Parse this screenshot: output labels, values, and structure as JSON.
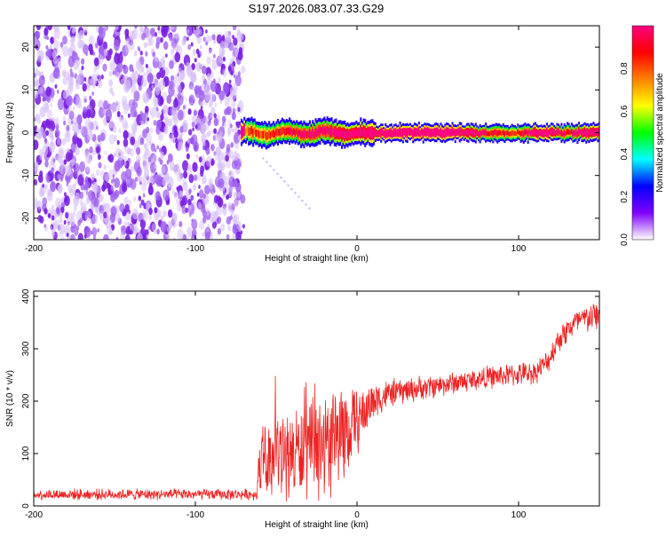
{
  "figure_title": "S197.2026.083.07.33.G29",
  "chart_data": [
    {
      "type": "heatmap",
      "title": "S197.2026.083.07.33.G29",
      "xlabel": "Height of straight line (km)",
      "ylabel": "Frequency (Hz)",
      "xlim": [
        -200,
        150
      ],
      "ylim": [
        -25,
        25
      ],
      "x_ticks": [
        {
          "value": -200,
          "label": "-200"
        },
        {
          "value": -100,
          "label": "-100"
        },
        {
          "value": 0,
          "label": "0"
        },
        {
          "value": 100,
          "label": "100"
        }
      ],
      "y_ticks": [
        {
          "value": -20,
          "label": "-20"
        },
        {
          "value": -10,
          "label": "-10"
        },
        {
          "value": 0,
          "label": "0"
        },
        {
          "value": 10,
          "label": "10"
        },
        {
          "value": 20,
          "label": "20"
        }
      ],
      "noise_region_x": [
        -200,
        -70
      ],
      "signal": {
        "start_x": -72,
        "end_x": 150,
        "center_frequency_hz": 0,
        "description_values": [
          {
            "x": -70,
            "amp": 0.35
          },
          {
            "x": -60,
            "amp": 0.4
          },
          {
            "x": -45,
            "amp": 0.45
          },
          {
            "x": -30,
            "amp": 0.55
          },
          {
            "x": -20,
            "amp": 0.6
          },
          {
            "x": -10,
            "amp": 0.7
          },
          {
            "x": 0,
            "amp": 0.75
          },
          {
            "x": 20,
            "amp": 0.9
          },
          {
            "x": 40,
            "amp": 0.95
          },
          {
            "x": 60,
            "amp": 0.92
          },
          {
            "x": 80,
            "amp": 0.5
          },
          {
            "x": 100,
            "amp": 0.45
          },
          {
            "x": 115,
            "amp": 0.9
          },
          {
            "x": 130,
            "amp": 0.45
          },
          {
            "x": 145,
            "amp": 0.85
          }
        ]
      },
      "colorbar": {
        "label": "Normalized spectral amplitude",
        "range": [
          0,
          1
        ],
        "ticks": [
          {
            "value": 0.0,
            "label": "0.0"
          },
          {
            "value": 0.2,
            "label": "0.2"
          },
          {
            "value": 0.4,
            "label": "0.4"
          },
          {
            "value": 0.6,
            "label": "0.6"
          },
          {
            "value": 0.8,
            "label": "0.8"
          }
        ],
        "colors": [
          "#ffffff",
          "#8000ff",
          "#0000ff",
          "#00ffff",
          "#00ff00",
          "#ffff00",
          "#ff8000",
          "#ff0000",
          "#ff0080"
        ]
      }
    },
    {
      "type": "line",
      "xlabel": "Height of straight line (km)",
      "ylabel": "SNR (10 * v/v)",
      "xlim": [
        -200,
        150
      ],
      "ylim": [
        0,
        410
      ],
      "line_color": "#ee2222",
      "x_ticks": [
        {
          "value": -200,
          "label": "-200"
        },
        {
          "value": -100,
          "label": "-100"
        },
        {
          "value": 0,
          "label": "0"
        },
        {
          "value": 100,
          "label": "100"
        }
      ],
      "y_ticks": [
        {
          "value": 0,
          "label": "0"
        },
        {
          "value": 100,
          "label": "100"
        },
        {
          "value": 200,
          "label": "200"
        },
        {
          "value": 300,
          "label": "300"
        },
        {
          "value": 400,
          "label": "400"
        }
      ],
      "envelope": [
        {
          "x": -200,
          "mean": 22,
          "spread": 12
        },
        {
          "x": -120,
          "mean": 22,
          "spread": 12
        },
        {
          "x": -62,
          "mean": 22,
          "spread": 12
        },
        {
          "x": -60,
          "mean": 90,
          "spread": 70
        },
        {
          "x": -40,
          "mean": 100,
          "spread": 100
        },
        {
          "x": -20,
          "mean": 110,
          "spread": 110
        },
        {
          "x": -10,
          "mean": 140,
          "spread": 110
        },
        {
          "x": 0,
          "mean": 160,
          "spread": 70
        },
        {
          "x": 10,
          "mean": 200,
          "spread": 45
        },
        {
          "x": 20,
          "mean": 215,
          "spread": 30
        },
        {
          "x": 50,
          "mean": 230,
          "spread": 25
        },
        {
          "x": 80,
          "mean": 245,
          "spread": 25
        },
        {
          "x": 110,
          "mean": 255,
          "spread": 25
        },
        {
          "x": 118,
          "mean": 275,
          "spread": 25
        },
        {
          "x": 125,
          "mean": 320,
          "spread": 30
        },
        {
          "x": 135,
          "mean": 350,
          "spread": 30
        },
        {
          "x": 150,
          "mean": 365,
          "spread": 35
        }
      ]
    }
  ]
}
